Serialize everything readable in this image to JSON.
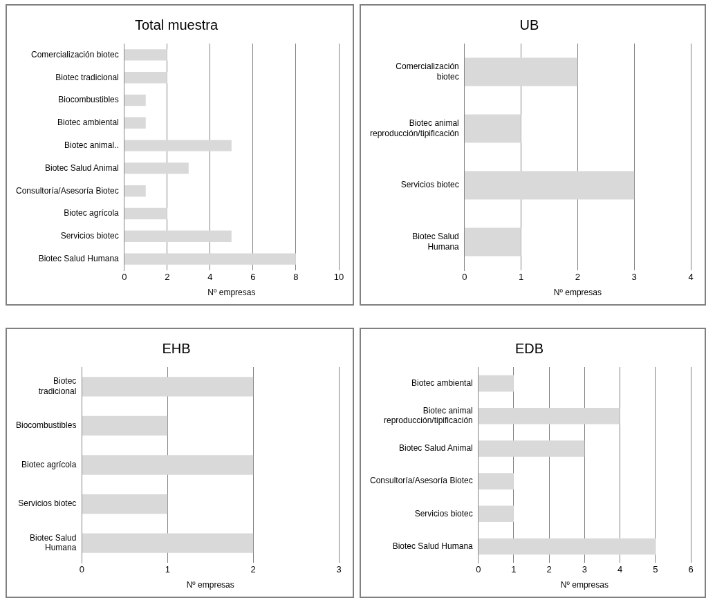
{
  "chart_data": [
    {
      "type": "bar",
      "orientation": "horizontal",
      "title": "Total muestra",
      "xlabel": "Nº empresas",
      "categories": [
        "Comercialización biotec",
        "Biotec tradicional",
        "Biocombustibles",
        "Biotec ambiental",
        "Biotec animal..",
        "Biotec Salud Animal",
        "Consultoría/Asesoría Biotec",
        "Biotec agrícola",
        "Servicios biotec",
        "Biotec Salud Humana"
      ],
      "values": [
        2,
        2,
        1,
        1,
        5,
        3,
        1,
        2,
        5,
        8
      ],
      "color": "#d9d9d9",
      "xlim": [
        0,
        10
      ],
      "xticks": [
        0,
        2,
        4,
        6,
        8,
        10
      ],
      "grid": "x",
      "legend": false
    },
    {
      "type": "bar",
      "orientation": "horizontal",
      "title": "UB",
      "xlabel": "Nº empresas",
      "categories": [
        "Comercialización biotec",
        "Biotec animal reproducción/tipificación",
        "Servicios biotec",
        "Biotec Salud Humana"
      ],
      "values": [
        2,
        1,
        3,
        1
      ],
      "color": "#d9d9d9",
      "xlim": [
        0,
        4
      ],
      "xticks": [
        0,
        1,
        2,
        3,
        4
      ],
      "grid": "x",
      "legend": false
    },
    {
      "type": "bar",
      "orientation": "horizontal",
      "title": "EHB",
      "xlabel": "Nº empresas",
      "categories": [
        "Biotec tradicional",
        "Biocombustibles",
        "Biotec agrícola",
        "Servicios biotec",
        "Biotec Salud Humana"
      ],
      "values": [
        2,
        1,
        2,
        1,
        2
      ],
      "color": "#d9d9d9",
      "xlim": [
        0,
        3
      ],
      "xticks": [
        0,
        1,
        2,
        3
      ],
      "grid": "x",
      "legend": false
    },
    {
      "type": "bar",
      "orientation": "horizontal",
      "title": "EDB",
      "xlabel": "Nº empresas",
      "categories": [
        "Biotec ambiental",
        "Biotec animal reproducción/tipificación",
        "Biotec Salud Animal",
        "Consultoría/Asesoría Biotec",
        "Servicios biotec",
        "Biotec Salud Humana"
      ],
      "values": [
        1,
        4,
        3,
        1,
        1,
        5
      ],
      "color": "#d9d9d9",
      "xlim": [
        0,
        6
      ],
      "xticks": [
        0,
        1,
        2,
        3,
        4,
        5,
        6
      ],
      "grid": "x",
      "legend": false
    }
  ]
}
